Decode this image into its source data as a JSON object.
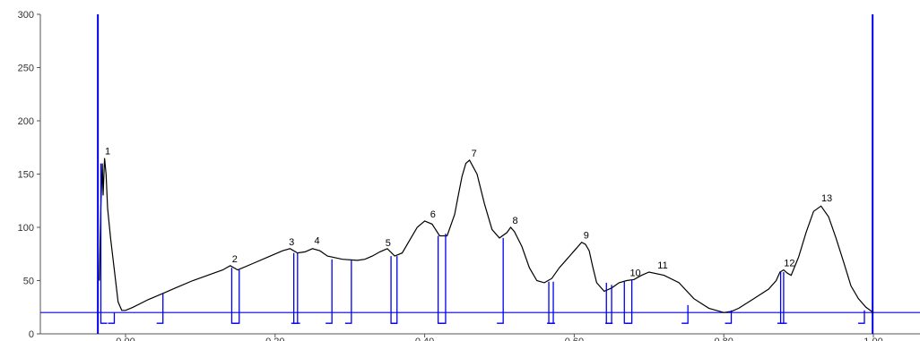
{
  "chart_data": {
    "type": "line",
    "title": "",
    "xlabel": "",
    "ylabel": "",
    "xlim": [
      -0.05,
      1.0
    ],
    "ylim": [
      0,
      300
    ],
    "xticks": [
      {
        "value": 0.0,
        "label": "0.00"
      },
      {
        "value": 0.2,
        "label": "0.20"
      },
      {
        "value": 0.4,
        "label": "0.40"
      },
      {
        "value": 0.6,
        "label": "0.60"
      },
      {
        "value": 0.8,
        "label": "0.80"
      },
      {
        "value": 1.0,
        "label": "1.00"
      }
    ],
    "yticks": [
      {
        "value": 0,
        "label": "0"
      },
      {
        "value": 50,
        "label": "50"
      },
      {
        "value": 100,
        "label": "100"
      },
      {
        "value": 150,
        "label": "150"
      },
      {
        "value": 200,
        "label": "200"
      },
      {
        "value": 250,
        "label": "250"
      },
      {
        "value": 300,
        "label": "300"
      }
    ],
    "baseline": 20,
    "front_lines": [
      -0.037,
      0.999
    ],
    "series": [
      {
        "x": [
          -0.035,
          -0.033,
          -0.031,
          -0.03,
          -0.028,
          -0.026,
          -0.024,
          -0.02,
          -0.015,
          -0.01,
          -0.005,
          0.0,
          0.01,
          0.03,
          0.05,
          0.07,
          0.09,
          0.11,
          0.13,
          0.14,
          0.15,
          0.17,
          0.19,
          0.21,
          0.22,
          0.23,
          0.24,
          0.25,
          0.26,
          0.27,
          0.29,
          0.31,
          0.32,
          0.33,
          0.34,
          0.35,
          0.36,
          0.37,
          0.38,
          0.39,
          0.4,
          0.41,
          0.42,
          0.43,
          0.44,
          0.445,
          0.45,
          0.455,
          0.46,
          0.47,
          0.48,
          0.49,
          0.5,
          0.51,
          0.515,
          0.52,
          0.53,
          0.54,
          0.55,
          0.56,
          0.57,
          0.58,
          0.59,
          0.6,
          0.61,
          0.615,
          0.62,
          0.625,
          0.63,
          0.64,
          0.65,
          0.66,
          0.67,
          0.68,
          0.69,
          0.7,
          0.72,
          0.74,
          0.76,
          0.78,
          0.8,
          0.81,
          0.82,
          0.84,
          0.86,
          0.87,
          0.875,
          0.88,
          0.885,
          0.89,
          0.9,
          0.91,
          0.92,
          0.93,
          0.94,
          0.95,
          0.96,
          0.97,
          0.98,
          0.99,
          1.0
        ],
        "y": [
          50,
          120,
          160,
          130,
          165,
          150,
          118,
          90,
          60,
          30,
          22,
          22,
          25,
          32,
          38,
          44,
          50,
          55,
          60,
          64,
          60,
          66,
          72,
          78,
          80,
          76,
          77,
          80,
          78,
          73,
          70,
          69,
          70,
          73,
          77,
          80,
          73,
          76,
          88,
          100,
          106,
          103,
          92,
          92,
          112,
          130,
          148,
          160,
          163,
          150,
          122,
          98,
          90,
          95,
          100,
          96,
          82,
          62,
          50,
          48,
          52,
          62,
          70,
          78,
          86,
          84,
          78,
          62,
          48,
          40,
          43,
          48,
          50,
          51,
          55,
          58,
          55,
          48,
          33,
          24,
          20,
          21,
          24,
          33,
          42,
          50,
          58,
          60,
          57,
          55,
          72,
          95,
          115,
          120,
          110,
          90,
          68,
          45,
          33,
          25,
          20
        ]
      }
    ],
    "peaks": [
      {
        "label": "1",
        "x": -0.03,
        "y": 165
      },
      {
        "label": "2",
        "x": 0.14,
        "y": 64
      },
      {
        "label": "3",
        "x": 0.216,
        "y": 80
      },
      {
        "label": "4",
        "x": 0.25,
        "y": 81
      },
      {
        "label": "5",
        "x": 0.345,
        "y": 79
      },
      {
        "label": "6",
        "x": 0.405,
        "y": 106
      },
      {
        "label": "7",
        "x": 0.46,
        "y": 163
      },
      {
        "label": "8",
        "x": 0.515,
        "y": 100
      },
      {
        "label": "9",
        "x": 0.61,
        "y": 86
      },
      {
        "label": "10",
        "x": 0.672,
        "y": 51
      },
      {
        "label": "11",
        "x": 0.709,
        "y": 58
      },
      {
        "label": "12",
        "x": 0.878,
        "y": 60
      },
      {
        "label": "13",
        "x": 0.928,
        "y": 121
      }
    ],
    "markers": [
      {
        "x": -0.033,
        "y": 160,
        "side": "right"
      },
      {
        "x": -0.015,
        "y": 20,
        "side": "left"
      },
      {
        "x": 0.05,
        "y": 38,
        "side": "left"
      },
      {
        "x": 0.142,
        "y": 62,
        "side": "right"
      },
      {
        "x": 0.152,
        "y": 60,
        "side": "left"
      },
      {
        "x": 0.225,
        "y": 76,
        "side": "right"
      },
      {
        "x": 0.23,
        "y": 76,
        "side": "left"
      },
      {
        "x": 0.276,
        "y": 70,
        "side": "left"
      },
      {
        "x": 0.302,
        "y": 69,
        "side": "left"
      },
      {
        "x": 0.355,
        "y": 73,
        "side": "right"
      },
      {
        "x": 0.363,
        "y": 73,
        "side": "left"
      },
      {
        "x": 0.418,
        "y": 92,
        "side": "right"
      },
      {
        "x": 0.428,
        "y": 94,
        "side": "left"
      },
      {
        "x": 0.505,
        "y": 90,
        "side": "left"
      },
      {
        "x": 0.566,
        "y": 49,
        "side": "right"
      },
      {
        "x": 0.572,
        "y": 49,
        "side": "left"
      },
      {
        "x": 0.643,
        "y": 48,
        "side": "right"
      },
      {
        "x": 0.65,
        "y": 46,
        "side": "left"
      },
      {
        "x": 0.667,
        "y": 49,
        "side": "right"
      },
      {
        "x": 0.677,
        "y": 51,
        "side": "left"
      },
      {
        "x": 0.752,
        "y": 27,
        "side": "left"
      },
      {
        "x": 0.81,
        "y": 22,
        "side": "left"
      },
      {
        "x": 0.876,
        "y": 58,
        "side": "right"
      },
      {
        "x": 0.88,
        "y": 58,
        "side": "left"
      },
      {
        "x": 0.988,
        "y": 22,
        "side": "left"
      }
    ]
  },
  "colors": {
    "trace": "#000000",
    "marker": "#0000ee",
    "axis": "#555555"
  }
}
